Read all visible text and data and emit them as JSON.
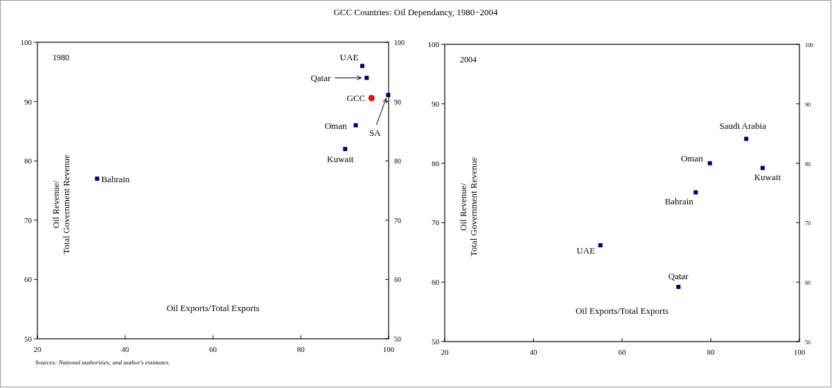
{
  "chart_data": [
    {
      "type": "scatter",
      "title": "GCC Countries: Oil Dependancy, 1980−2004",
      "xlabel": "Oil Exports/Total Exports",
      "ylabel": "Oil Revenue/\nTotal Government Revenue",
      "annotations": [
        "1980",
        "Sources: National authorities; and author's estimates."
      ],
      "xlim": [
        20,
        100
      ],
      "xticks": [
        20,
        40,
        60,
        80,
        100
      ],
      "ylim": [
        50,
        100
      ],
      "yticks": [
        50,
        60,
        70,
        80,
        90,
        100
      ],
      "y2lim": [
        50,
        100
      ],
      "y2ticks": [
        50,
        60,
        70,
        80,
        90,
        100
      ],
      "series": [
        {
          "name": "UAE",
          "color": "#000080",
          "marker": "square",
          "x": [
            94.0
          ],
          "values": [
            96
          ]
        },
        {
          "name": "Qatar",
          "color": "#000080",
          "marker": "square",
          "x": [
            95.0
          ],
          "values": [
            94
          ]
        },
        {
          "name": "GCC",
          "color": "#ff0000",
          "marker": "circle",
          "x": [
            96.1
          ],
          "values": [
            90.6
          ]
        },
        {
          "name": "SA",
          "color": "#000080",
          "marker": "square",
          "x": [
            99.9
          ],
          "values": [
            91.1
          ]
        },
        {
          "name": "Oman",
          "color": "#000080",
          "marker": "square",
          "x": [
            92.5
          ],
          "values": [
            86
          ]
        },
        {
          "name": "Kuwait",
          "color": "#000080",
          "marker": "square",
          "x": [
            90.1
          ],
          "values": [
            82
          ]
        },
        {
          "name": "Bahrain",
          "color": "#000080",
          "marker": "square",
          "x": [
            33.6
          ],
          "values": [
            77
          ]
        }
      ]
    },
    {
      "type": "scatter",
      "xlabel": "Oil Exports/Total Exports",
      "ylabel": "Oil Revenue/\nTotal Government Revenue",
      "annotations": [
        "2004"
      ],
      "xlim": [
        20,
        100
      ],
      "xticks": [
        20,
        40,
        60,
        80,
        100
      ],
      "ylim": [
        50,
        100
      ],
      "yticks": [
        50,
        60,
        70,
        80,
        90,
        100
      ],
      "y2lim": [
        50,
        100
      ],
      "y2ticks": [
        50,
        60,
        70,
        80,
        90,
        100
      ],
      "series": [
        {
          "name": "Saudi Arabia",
          "color": "#000080",
          "marker": "square",
          "x": [
            88.0
          ],
          "values": [
            84.1
          ]
        },
        {
          "name": "Oman",
          "color": "#000080",
          "marker": "square",
          "x": [
            79.8
          ],
          "values": [
            80
          ]
        },
        {
          "name": "Kuwait",
          "color": "#000080",
          "marker": "square",
          "x": [
            91.7
          ],
          "values": [
            79.2
          ]
        },
        {
          "name": "Bahrain",
          "color": "#000080",
          "marker": "square",
          "x": [
            76.6
          ],
          "values": [
            75.1
          ]
        },
        {
          "name": "UAE",
          "color": "#000080",
          "marker": "square",
          "x": [
            55.1
          ],
          "values": [
            66.2
          ]
        },
        {
          "name": "Qatar",
          "color": "#000080",
          "marker": "square",
          "x": [
            72.7
          ],
          "values": [
            59.2
          ]
        }
      ]
    }
  ]
}
